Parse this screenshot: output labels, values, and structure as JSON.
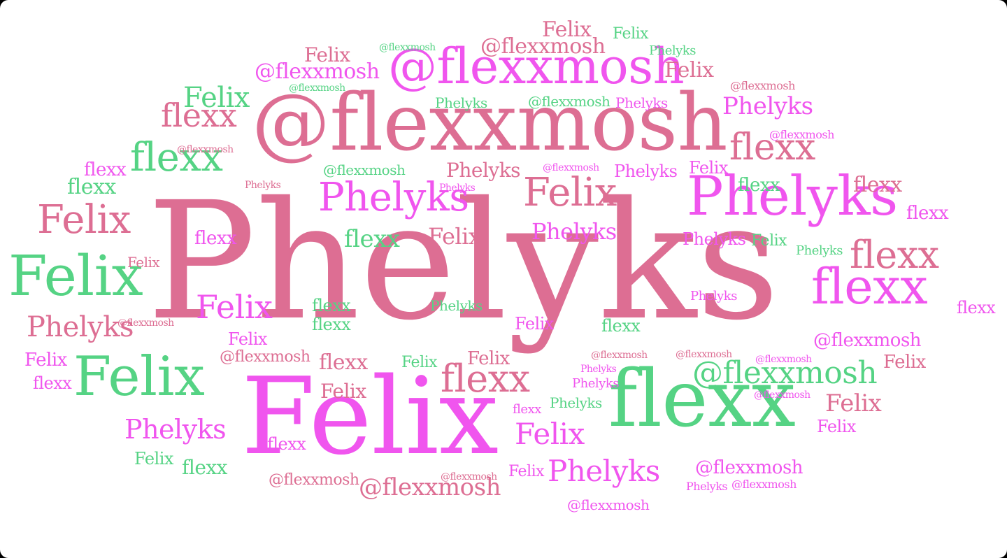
{
  "palette": {
    "pink": "#dd6e93",
    "magenta": "#f055ee",
    "green": "#55d384",
    "background": "#ffffff"
  },
  "words": [
    {
      "t": "Phelyks",
      "c": "pink"
    },
    {
      "t": "Felix",
      "c": "magenta"
    },
    {
      "t": "@flexxmosh",
      "c": "pink"
    },
    {
      "t": "flexx",
      "c": "green"
    },
    {
      "t": "@flexxmosh",
      "c": "magenta"
    },
    {
      "t": "Phelyks",
      "c": "magenta"
    },
    {
      "t": "Felix",
      "c": "green"
    },
    {
      "t": "Felix",
      "c": "green"
    },
    {
      "t": "flexx",
      "c": "magenta"
    },
    {
      "t": "Phelyks",
      "c": "magenta"
    },
    {
      "t": "Felix",
      "c": "pink"
    },
    {
      "t": "flexx",
      "c": "green"
    },
    {
      "t": "flexx",
      "c": "pink"
    },
    {
      "t": "Felix",
      "c": "pink"
    },
    {
      "t": "flexx",
      "c": "pink"
    },
    {
      "t": "flexx",
      "c": "pink"
    },
    {
      "t": "@flexxmosh",
      "c": "green"
    },
    {
      "t": "Phelyks",
      "c": "magenta"
    },
    {
      "t": "Felix",
      "c": "magenta"
    },
    {
      "t": "flexx",
      "c": "pink"
    },
    {
      "t": "Phelyks",
      "c": "pink"
    },
    {
      "t": "Felix",
      "c": "green"
    },
    {
      "t": "Phelyks",
      "c": "magenta"
    },
    {
      "t": "Felix",
      "c": "magenta"
    },
    {
      "t": "Phelyks",
      "c": "magenta"
    },
    {
      "t": "Phelyks",
      "c": "magenta"
    },
    {
      "t": "@flexxmosh",
      "c": "pink"
    },
    {
      "t": "@flexxmosh",
      "c": "magenta"
    },
    {
      "t": "@flexxmosh",
      "c": "pink"
    },
    {
      "t": "Felix",
      "c": "pink"
    },
    {
      "t": "Felix",
      "c": "pink"
    },
    {
      "t": "Phelyks",
      "c": "pink"
    },
    {
      "t": "flexx",
      "c": "green"
    },
    {
      "t": "flexx",
      "c": "magenta"
    },
    {
      "t": "flexx",
      "c": "pink"
    },
    {
      "t": "Felix",
      "c": "pink"
    },
    {
      "t": "Felix",
      "c": "magenta"
    },
    {
      "t": "flexx",
      "c": "green"
    },
    {
      "t": "Felix",
      "c": "pink"
    },
    {
      "t": "Felix",
      "c": "pink"
    },
    {
      "t": "Felix",
      "c": "magenta"
    },
    {
      "t": "flexx",
      "c": "pink"
    },
    {
      "t": "Phelyks",
      "c": "green"
    },
    {
      "t": "Felix",
      "c": "green"
    },
    {
      "t": "@flexxmosh",
      "c": "magenta"
    },
    {
      "t": "@flexxmosh",
      "c": "pink"
    },
    {
      "t": "@flexxmosh",
      "c": "magenta"
    },
    {
      "t": "@flexxmosh",
      "c": "green"
    },
    {
      "t": "@flexxmosh",
      "c": "pink"
    },
    {
      "t": "Felix",
      "c": "pink"
    },
    {
      "t": "Felix",
      "c": "pink"
    },
    {
      "t": "Felix",
      "c": "green"
    },
    {
      "t": "Phelyks",
      "c": "green"
    },
    {
      "t": "Phelyks",
      "c": "green"
    },
    {
      "t": "@flexxmosh",
      "c": "green"
    },
    {
      "t": "Phelyks",
      "c": "magenta"
    },
    {
      "t": "flexx",
      "c": "magenta"
    },
    {
      "t": "flexx",
      "c": "green"
    },
    {
      "t": "flexx",
      "c": "green"
    },
    {
      "t": "flexx",
      "c": "green"
    },
    {
      "t": "flexx",
      "c": "green"
    },
    {
      "t": "Felix",
      "c": "magenta"
    },
    {
      "t": "Felix",
      "c": "magenta"
    },
    {
      "t": "Phelyks",
      "c": "green"
    },
    {
      "t": "Felix",
      "c": "green"
    },
    {
      "t": "Phelyks",
      "c": "magenta"
    },
    {
      "t": "Phelyks",
      "c": "magenta"
    },
    {
      "t": "flexx",
      "c": "magenta"
    },
    {
      "t": "flexx",
      "c": "magenta"
    },
    {
      "t": "flexx",
      "c": "magenta"
    },
    {
      "t": "flexx",
      "c": "magenta"
    },
    {
      "t": "Felix",
      "c": "green"
    },
    {
      "t": "Felix",
      "c": "magenta"
    },
    {
      "t": "Felix",
      "c": "magenta"
    },
    {
      "t": "Felix",
      "c": "pink"
    },
    {
      "t": "Felix",
      "c": "pink"
    },
    {
      "t": "flexx",
      "c": "green"
    },
    {
      "t": "flexx",
      "c": "magenta"
    },
    {
      "t": "flexx",
      "c": "green"
    },
    {
      "t": "Phelyks",
      "c": "green"
    },
    {
      "t": "Felix",
      "c": "pink"
    },
    {
      "t": "flexx",
      "c": "green"
    },
    {
      "t": "Felix",
      "c": "green"
    },
    {
      "t": "Phelyks",
      "c": "magenta"
    },
    {
      "t": "Phelyks",
      "c": "magenta"
    },
    {
      "t": "Phelyks",
      "c": "magenta"
    },
    {
      "t": "@flexxmosh",
      "c": "green"
    },
    {
      "t": "@flexxmosh",
      "c": "green"
    },
    {
      "t": "@flexxmosh",
      "c": "magenta"
    },
    {
      "t": "@flexxmosh",
      "c": "magenta"
    },
    {
      "t": "@flexxmosh",
      "c": "magenta"
    },
    {
      "t": "@flexxmosh",
      "c": "pink"
    },
    {
      "t": "@flexxmosh",
      "c": "pink"
    },
    {
      "t": "@flexxmosh",
      "c": "pink"
    },
    {
      "t": "@flexxmosh",
      "c": "pink"
    },
    {
      "t": "@flexxmosh",
      "c": "magenta"
    },
    {
      "t": "Phelyks",
      "c": "magenta"
    },
    {
      "t": "@flexxmosh",
      "c": "magenta"
    },
    {
      "t": "@flexxmosh",
      "c": "pink"
    },
    {
      "t": "Phelyks",
      "c": "pink"
    },
    {
      "t": "Phelyks",
      "c": "magenta"
    },
    {
      "t": "@flexxmosh",
      "c": "magenta"
    },
    {
      "t": "@flexxmosh",
      "c": "pink"
    },
    {
      "t": "Phelyks",
      "c": "magenta"
    },
    {
      "t": "Felix",
      "c": "magenta"
    },
    {
      "t": "flexx",
      "c": "magenta"
    }
  ]
}
